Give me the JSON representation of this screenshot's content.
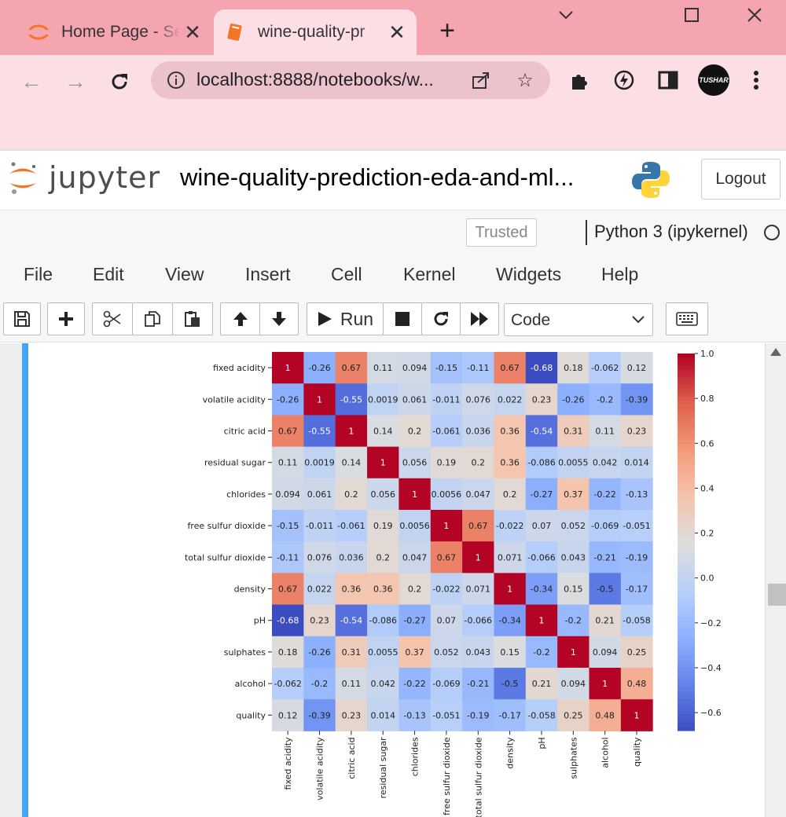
{
  "browser": {
    "tabs": [
      {
        "title": "Home Page - Se",
        "active": false
      },
      {
        "title": "wine-quality-pr",
        "active": true
      }
    ],
    "url": "localhost:8888/notebooks/w...",
    "avatar_text": "TUSHAR",
    "colors": {
      "tabstrip": "#f4a5b0",
      "toolbar": "#fcdfe5"
    }
  },
  "jupyter": {
    "logo_text": "jupyter",
    "notebook_title": "wine-quality-prediction-eda-and-ml...",
    "logout_label": "Logout",
    "trusted_label": "Trusted",
    "kernel_name": "Python 3 (ipykernel)",
    "menu": [
      "File",
      "Edit",
      "View",
      "Insert",
      "Cell",
      "Kernel",
      "Widgets",
      "Help"
    ],
    "toolbar": {
      "run_label": "Run",
      "cell_type": "Code",
      "icons": [
        "save-icon",
        "plus-icon",
        "cut-icon",
        "copy-icon",
        "paste-icon",
        "arrow-up-icon",
        "arrow-down-icon",
        "play-icon",
        "stop-icon",
        "restart-icon",
        "fast-forward-icon",
        "keyboard-icon"
      ]
    }
  },
  "chart_data": {
    "type": "heatmap",
    "labels": [
      "fixed acidity",
      "volatile acidity",
      "citric acid",
      "residual sugar",
      "chlorides",
      "free sulfur dioxide",
      "total sulfur dioxide",
      "density",
      "pH",
      "sulphates",
      "alcohol",
      "quality"
    ],
    "matrix": [
      [
        "1",
        "-0.26",
        "0.67",
        "0.11",
        "0.094",
        "-0.15",
        "-0.11",
        "0.67",
        "-0.68",
        "0.18",
        "-0.062",
        "0.12"
      ],
      [
        "-0.26",
        "1",
        "-0.55",
        "0.0019",
        "0.061",
        "-0.011",
        "0.076",
        "0.022",
        "0.23",
        "-0.26",
        "-0.2",
        "-0.39"
      ],
      [
        "0.67",
        "-0.55",
        "1",
        "0.14",
        "0.2",
        "-0.061",
        "0.036",
        "0.36",
        "-0.54",
        "0.31",
        "0.11",
        "0.23"
      ],
      [
        "0.11",
        "0.0019",
        "0.14",
        "1",
        "0.056",
        "0.19",
        "0.2",
        "0.36",
        "-0.086",
        "0.0055",
        "0.042",
        "0.014"
      ],
      [
        "0.094",
        "0.061",
        "0.2",
        "0.056",
        "1",
        "0.0056",
        "0.047",
        "0.2",
        "-0.27",
        "0.37",
        "-0.22",
        "-0.13"
      ],
      [
        "-0.15",
        "-0.011",
        "-0.061",
        "0.19",
        "0.0056",
        "1",
        "0.67",
        "-0.022",
        "0.07",
        "0.052",
        "-0.069",
        "-0.051"
      ],
      [
        "-0.11",
        "0.076",
        "0.036",
        "0.2",
        "0.047",
        "0.67",
        "1",
        "0.071",
        "-0.066",
        "0.043",
        "-0.21",
        "-0.19"
      ],
      [
        "0.67",
        "0.022",
        "0.36",
        "0.36",
        "0.2",
        "-0.022",
        "0.071",
        "1",
        "-0.34",
        "0.15",
        "-0.5",
        "-0.17"
      ],
      [
        "-0.68",
        "0.23",
        "-0.54",
        "-0.086",
        "-0.27",
        "0.07",
        "-0.066",
        "-0.34",
        "1",
        "-0.2",
        "0.21",
        "-0.058"
      ],
      [
        "0.18",
        "-0.26",
        "0.31",
        "0.0055",
        "0.37",
        "0.052",
        "0.043",
        "0.15",
        "-0.2",
        "1",
        "0.094",
        "0.25"
      ],
      [
        "-0.062",
        "-0.2",
        "0.11",
        "0.042",
        "-0.22",
        "-0.069",
        "-0.21",
        "-0.5",
        "0.21",
        "0.094",
        "1",
        "0.48"
      ],
      [
        "0.12",
        "-0.39",
        "0.23",
        "0.014",
        "-0.13",
        "-0.051",
        "-0.19",
        "-0.17",
        "-0.058",
        "0.25",
        "0.48",
        "1"
      ]
    ],
    "colormap": "coolwarm",
    "vmin": -0.68,
    "vmax": 1.0,
    "colorbar_ticks": [
      "1.0",
      "0.8",
      "0.6",
      "0.4",
      "0.2",
      "0.0",
      "−0.2",
      "−0.4",
      "−0.6"
    ],
    "colorbar_tick_values": [
      1.0,
      0.8,
      0.6,
      0.4,
      0.2,
      0.0,
      -0.2,
      -0.4,
      -0.6
    ]
  }
}
